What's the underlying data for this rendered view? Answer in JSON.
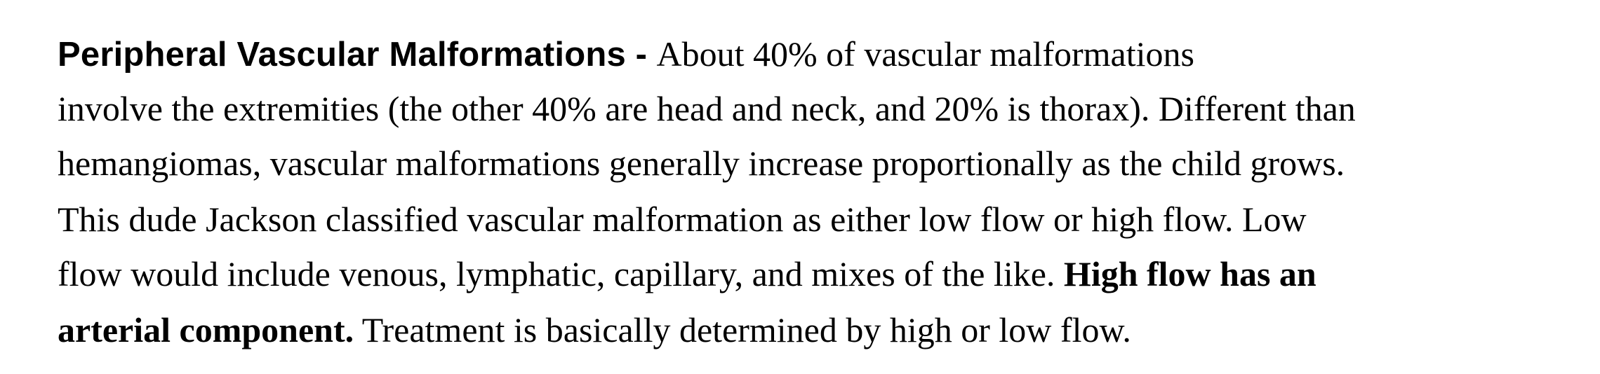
{
  "paragraph": {
    "heading": "Peripheral Vascular Malformations",
    "dash": " - ",
    "line1_rest": "About 40% of vascular malformations",
    "line2": "involve the extremities (the other 40% are head and neck, and 20% is thorax).  Different than",
    "line3": "hemangiomas, vascular malformations generally increase proportionally as the child grows.",
    "line4": "This dude Jackson classified vascular malformation as either low flow or high flow. Low",
    "line5_normal": "flow would include venous, lymphatic, capillary, and mixes of the like.  ",
    "line5_bold": "High flow has an",
    "line6_bold": "arterial component.",
    "line6_normal": "  Treatment is basically determined by high or low flow."
  }
}
